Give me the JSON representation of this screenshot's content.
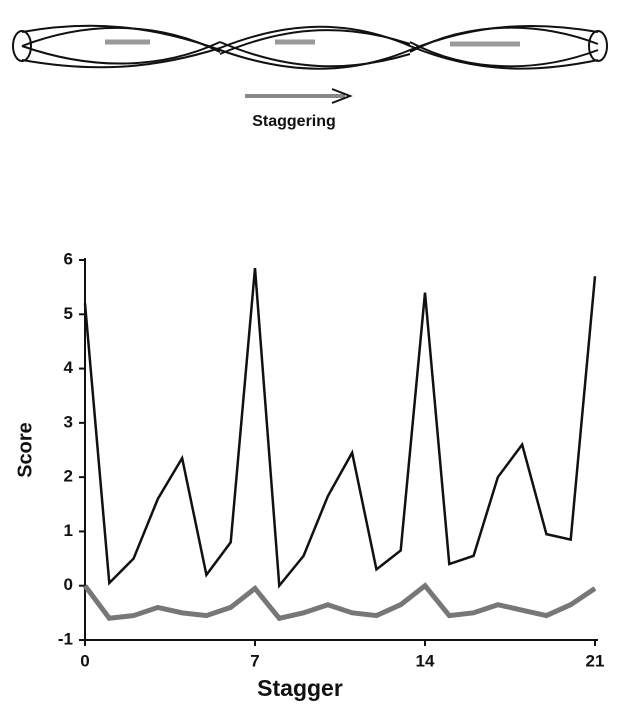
{
  "diagram": {
    "label": "Staggering"
  },
  "chart_data": {
    "type": "line",
    "xlabel": "Stagger",
    "ylabel": "Score",
    "x": [
      0,
      1,
      2,
      3,
      4,
      5,
      6,
      7,
      8,
      9,
      10,
      11,
      12,
      13,
      14,
      15,
      16,
      17,
      18,
      19,
      20,
      21
    ],
    "series": [
      {
        "color": "#111111",
        "values": [
          5.2,
          0.05,
          0.5,
          1.6,
          2.35,
          0.2,
          0.8,
          5.85,
          0.0,
          0.55,
          1.65,
          2.45,
          0.3,
          0.65,
          5.4,
          0.4,
          0.55,
          2.0,
          2.6,
          0.95,
          0.85,
          5.7
        ]
      },
      {
        "color": "#777777",
        "values": [
          0.0,
          -0.6,
          -0.55,
          -0.4,
          -0.5,
          -0.55,
          -0.4,
          -0.05,
          -0.6,
          -0.5,
          -0.35,
          -0.5,
          -0.55,
          -0.35,
          0.0,
          -0.55,
          -0.5,
          -0.35,
          -0.45,
          -0.55,
          -0.35,
          -0.05
        ]
      }
    ],
    "xlim": [
      0,
      21
    ],
    "xticks": [
      0,
      7,
      14,
      21
    ],
    "ylim": [
      -1,
      6
    ],
    "yticks": [
      -1,
      0,
      1,
      2,
      3,
      4,
      5,
      6
    ]
  }
}
